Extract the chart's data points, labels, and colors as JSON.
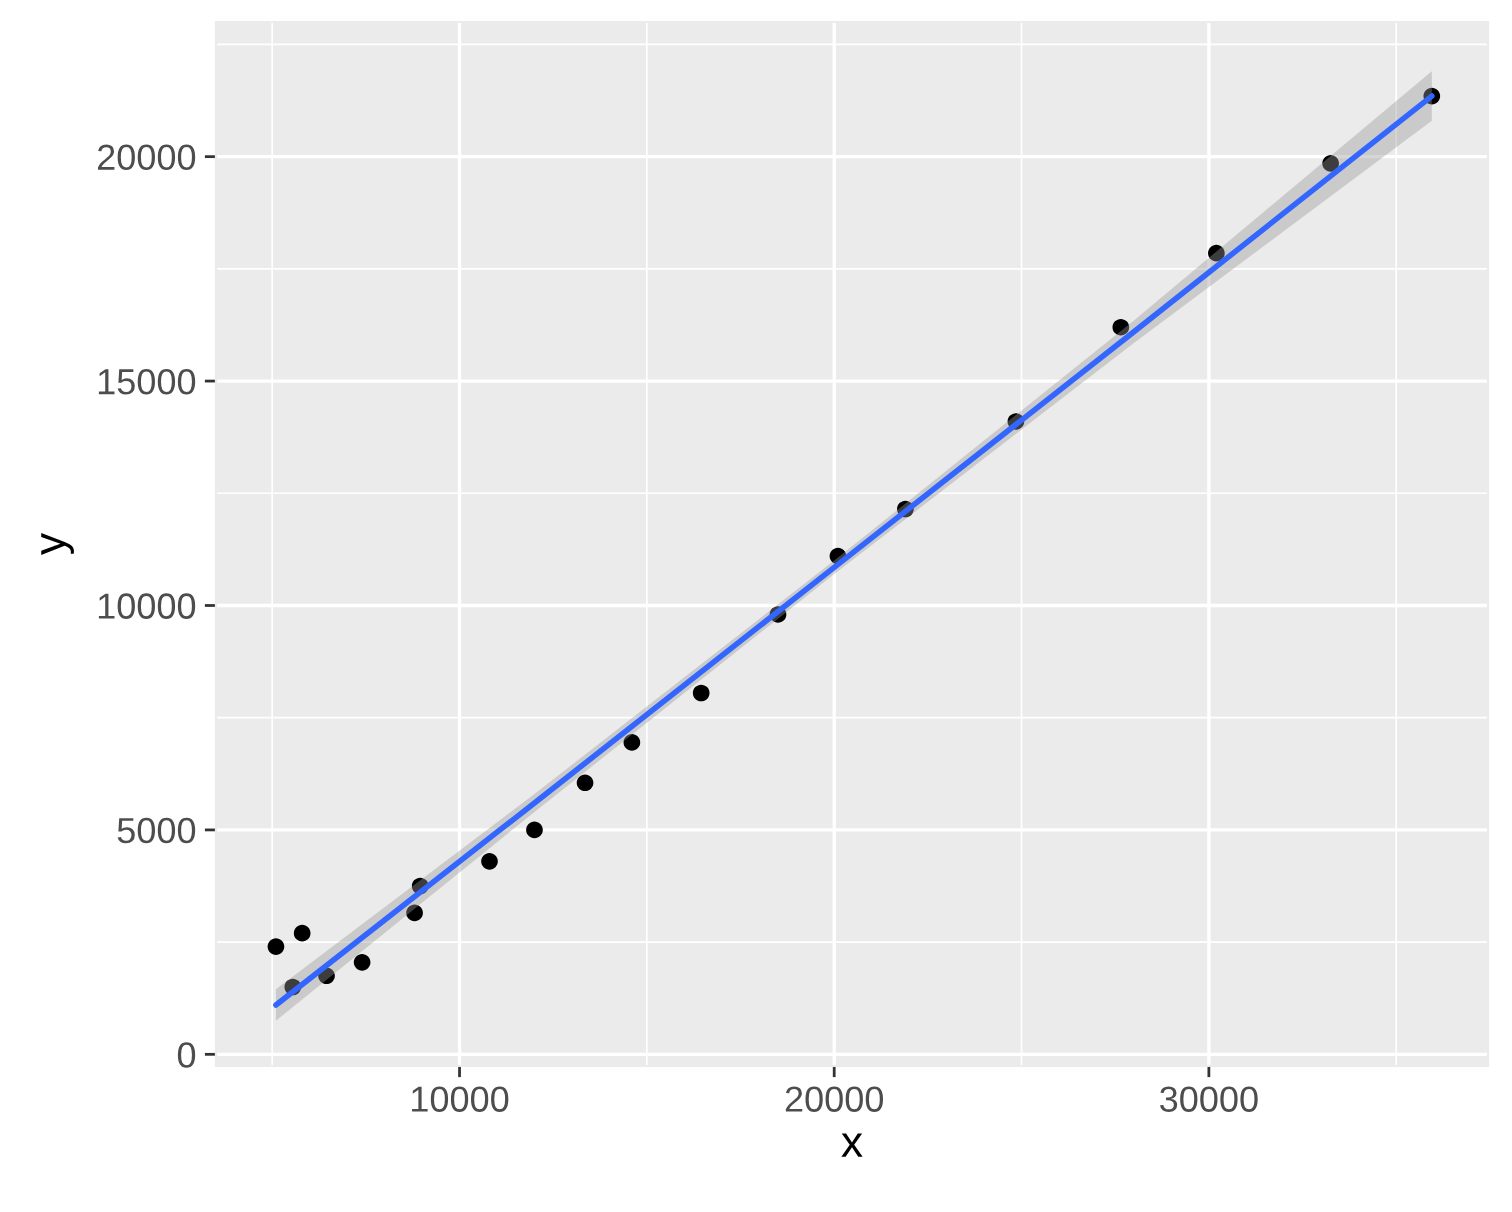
{
  "chart_data": {
    "type": "scatter",
    "xlabel": "x",
    "ylabel": "y",
    "xlim": [
      3500,
      37450
    ],
    "ylim": [
      -260,
      23000
    ],
    "xticks": [
      10000,
      20000,
      30000
    ],
    "yticks": [
      0,
      5000,
      10000,
      15000,
      20000
    ],
    "grid": true,
    "series": [
      {
        "color": "#000000",
        "marker": "circle",
        "x": [
          5100,
          5550,
          5800,
          6450,
          7400,
          8800,
          8950,
          10800,
          12000,
          13350,
          14600,
          16450,
          18500,
          20100,
          21900,
          24850,
          27650,
          30200,
          33250,
          35950
        ],
        "values": [
          2400,
          1500,
          2700,
          1750,
          2050,
          3150,
          3750,
          4300,
          5000,
          6050,
          6950,
          8050,
          9800,
          11100,
          12150,
          14100,
          16200,
          17850,
          19850,
          21350
        ]
      },
      {
        "type": "line",
        "color": "#3366ff",
        "line_style": "solid",
        "x": [
          5100,
          12000,
          20000,
          28000,
          35950
        ],
        "values": [
          1100,
          5600,
          10850,
          16100,
          21350
        ],
        "lower": [
          750,
          5400,
          10700,
          15850,
          20800
        ],
        "upper": [
          1450,
          5800,
          11000,
          16350,
          21900
        ]
      }
    ]
  }
}
